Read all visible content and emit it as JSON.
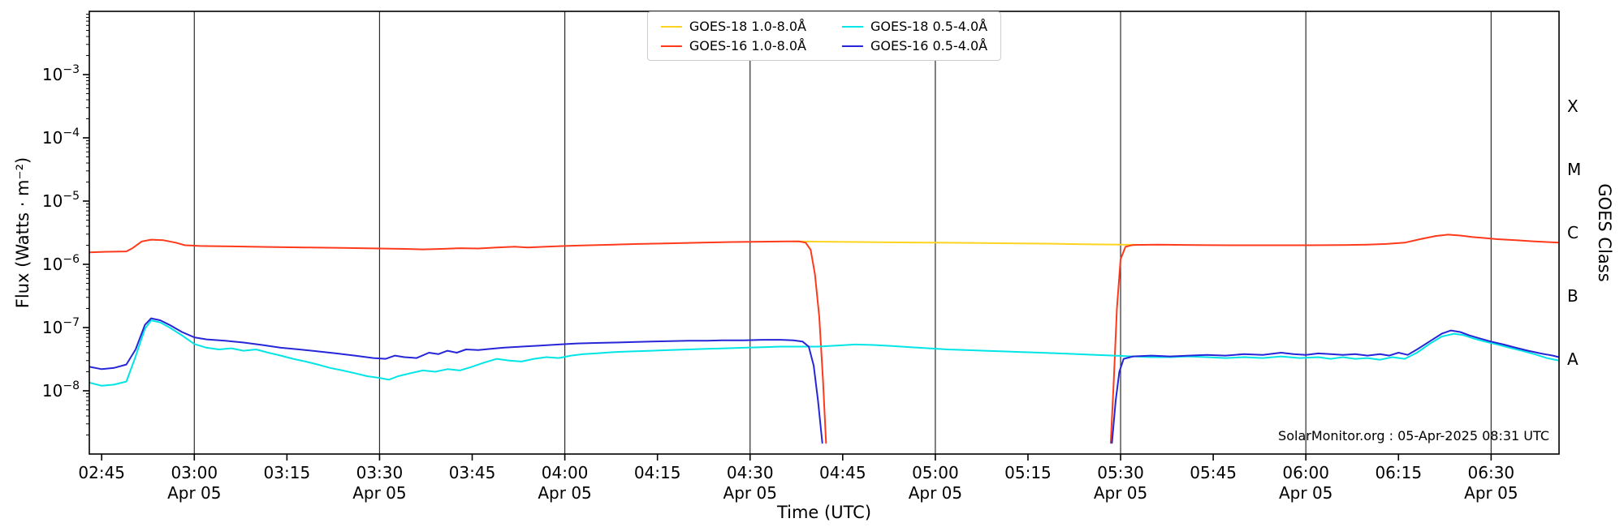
{
  "chart_data": {
    "type": "line",
    "title": "",
    "xlabel": "Time (UTC)",
    "ylabel": "Flux (Watts · m⁻²)",
    "ylabel_right": "GOES Class",
    "annotation": "SolarMonitor.org : 05-Apr-2025 08:31 UTC",
    "x_unit": "minutes_after_midnight_utc",
    "xlim": [
      163,
      401
    ],
    "ylim_log10": [
      -9,
      -2
    ],
    "grid": "vertical_at_30min",
    "legend_position": "top-center",
    "x_major_ticks": [
      {
        "t": 165,
        "label": "02:45"
      },
      {
        "t": 180,
        "label": "03:00",
        "date": "Apr 05",
        "gridline": true
      },
      {
        "t": 195,
        "label": "03:15"
      },
      {
        "t": 210,
        "label": "03:30",
        "date": "Apr 05",
        "gridline": true
      },
      {
        "t": 225,
        "label": "03:45"
      },
      {
        "t": 240,
        "label": "04:00",
        "date": "Apr 05",
        "gridline": true
      },
      {
        "t": 255,
        "label": "04:15"
      },
      {
        "t": 270,
        "label": "04:30",
        "date": "Apr 05",
        "gridline": true
      },
      {
        "t": 285,
        "label": "04:45"
      },
      {
        "t": 300,
        "label": "05:00",
        "date": "Apr 05",
        "gridline": true
      },
      {
        "t": 315,
        "label": "05:15"
      },
      {
        "t": 330,
        "label": "05:30",
        "date": "Apr 05",
        "gridline": true
      },
      {
        "t": 345,
        "label": "05:45"
      },
      {
        "t": 360,
        "label": "06:00",
        "date": "Apr 05",
        "gridline": true
      },
      {
        "t": 375,
        "label": "06:15"
      },
      {
        "t": 390,
        "label": "06:30",
        "date": "Apr 05",
        "gridline": true
      }
    ],
    "y_ticks": [
      {
        "exp": -3,
        "label": "10⁻³"
      },
      {
        "exp": -4,
        "label": "10⁻⁴"
      },
      {
        "exp": -5,
        "label": "10⁻⁵"
      },
      {
        "exp": -6,
        "label": "10⁻⁶"
      },
      {
        "exp": -7,
        "label": "10⁻⁷"
      },
      {
        "exp": -8,
        "label": "10⁻⁸"
      }
    ],
    "goes_class_labels": [
      {
        "label": "X",
        "log10": -3.5
      },
      {
        "label": "M",
        "log10": -4.5
      },
      {
        "label": "C",
        "log10": -5.5
      },
      {
        "label": "B",
        "log10": -6.5
      },
      {
        "label": "A",
        "log10": -7.5
      }
    ],
    "series": [
      {
        "name": "GOES-18 1.0-8.0Å",
        "color": "#ffd321",
        "points": [
          [
            277,
            2.3e-06
          ],
          [
            282,
            2.28e-06
          ],
          [
            288,
            2.25e-06
          ],
          [
            294,
            2.22e-06
          ],
          [
            300,
            2.2e-06
          ],
          [
            306,
            2.18e-06
          ],
          [
            312,
            2.15e-06
          ],
          [
            318,
            2.12e-06
          ],
          [
            324,
            2.08e-06
          ],
          [
            330,
            2.05e-06
          ],
          [
            333,
            2.03e-06
          ]
        ]
      },
      {
        "name": "GOES-16 1.0-8.0Å",
        "color": "#ff3a1c",
        "points": [
          [
            163,
            1.55e-06
          ],
          [
            166,
            1.58e-06
          ],
          [
            169,
            1.6e-06
          ],
          [
            170,
            1.8e-06
          ],
          [
            171.5,
            2.3e-06
          ],
          [
            173,
            2.45e-06
          ],
          [
            175,
            2.4e-06
          ],
          [
            177,
            2.2e-06
          ],
          [
            178.5,
            2e-06
          ],
          [
            181,
            1.95e-06
          ],
          [
            186,
            1.92e-06
          ],
          [
            192,
            1.88e-06
          ],
          [
            198,
            1.85e-06
          ],
          [
            204,
            1.82e-06
          ],
          [
            210,
            1.78e-06
          ],
          [
            214,
            1.75e-06
          ],
          [
            217,
            1.72e-06
          ],
          [
            220,
            1.75e-06
          ],
          [
            223,
            1.8e-06
          ],
          [
            226,
            1.78e-06
          ],
          [
            229,
            1.85e-06
          ],
          [
            232,
            1.9e-06
          ],
          [
            234,
            1.85e-06
          ],
          [
            237,
            1.9e-06
          ],
          [
            240,
            1.95e-06
          ],
          [
            244,
            2e-06
          ],
          [
            248,
            2.05e-06
          ],
          [
            252,
            2.1e-06
          ],
          [
            257,
            2.15e-06
          ],
          [
            262,
            2.2e-06
          ],
          [
            267,
            2.25e-06
          ],
          [
            272,
            2.28e-06
          ],
          [
            276,
            2.3e-06
          ],
          [
            278,
            2.3e-06
          ],
          [
            279,
            2.2e-06
          ],
          [
            279.8,
            1.7e-06
          ],
          [
            280.5,
            7e-07
          ],
          [
            281.2,
            1.5e-07
          ],
          [
            281.8,
            1.5e-08
          ],
          [
            282.3,
            1.5e-09
          ],
          null,
          [
            328.4,
            1.5e-09
          ],
          [
            328.9,
            1.5e-08
          ],
          [
            329.4,
            2e-07
          ],
          [
            330,
            1.2e-06
          ],
          [
            330.8,
            1.9e-06
          ],
          [
            332,
            2.02e-06
          ],
          [
            336,
            2.05e-06
          ],
          [
            342,
            2.02e-06
          ],
          [
            348,
            2e-06
          ],
          [
            354,
            2e-06
          ],
          [
            360,
            2e-06
          ],
          [
            366,
            2.02e-06
          ],
          [
            370,
            2.05e-06
          ],
          [
            373,
            2.1e-06
          ],
          [
            376,
            2.2e-06
          ],
          [
            378.5,
            2.5e-06
          ],
          [
            381,
            2.8e-06
          ],
          [
            383,
            2.95e-06
          ],
          [
            385,
            2.85e-06
          ],
          [
            387,
            2.7e-06
          ],
          [
            389,
            2.6e-06
          ],
          [
            391,
            2.5e-06
          ],
          [
            394,
            2.4e-06
          ],
          [
            397,
            2.3e-06
          ],
          [
            399,
            2.25e-06
          ],
          [
            401,
            2.2e-06
          ]
        ]
      },
      {
        "name": "GOES-18 0.5-4.0Å",
        "color": "#00e5e5",
        "points": [
          [
            163,
            1.35e-08
          ],
          [
            165,
            1.2e-08
          ],
          [
            167,
            1.25e-08
          ],
          [
            169,
            1.4e-08
          ],
          [
            170.5,
            3.5e-08
          ],
          [
            172,
            9.5e-08
          ],
          [
            173,
            1.3e-07
          ],
          [
            174.5,
            1.2e-07
          ],
          [
            176,
            1e-07
          ],
          [
            178,
            7.5e-08
          ],
          [
            180,
            5.5e-08
          ],
          [
            182,
            4.8e-08
          ],
          [
            184,
            4.5e-08
          ],
          [
            186,
            4.7e-08
          ],
          [
            188,
            4.3e-08
          ],
          [
            190,
            4.5e-08
          ],
          [
            192,
            4e-08
          ],
          [
            194,
            3.6e-08
          ],
          [
            196,
            3.2e-08
          ],
          [
            198,
            2.9e-08
          ],
          [
            200,
            2.6e-08
          ],
          [
            202,
            2.3e-08
          ],
          [
            204,
            2.1e-08
          ],
          [
            206,
            1.9e-08
          ],
          [
            208,
            1.7e-08
          ],
          [
            210,
            1.6e-08
          ],
          [
            211.5,
            1.5e-08
          ],
          [
            213,
            1.7e-08
          ],
          [
            215,
            1.9e-08
          ],
          [
            217,
            2.1e-08
          ],
          [
            219,
            2e-08
          ],
          [
            221,
            2.2e-08
          ],
          [
            223,
            2.1e-08
          ],
          [
            225,
            2.4e-08
          ],
          [
            227,
            2.8e-08
          ],
          [
            229,
            3.2e-08
          ],
          [
            231,
            3e-08
          ],
          [
            233,
            2.9e-08
          ],
          [
            235,
            3.2e-08
          ],
          [
            237,
            3.4e-08
          ],
          [
            239,
            3.3e-08
          ],
          [
            241,
            3.6e-08
          ],
          [
            243,
            3.8e-08
          ],
          [
            245,
            3.9e-08
          ],
          [
            248,
            4.1e-08
          ],
          [
            251,
            4.2e-08
          ],
          [
            254,
            4.3e-08
          ],
          [
            257,
            4.4e-08
          ],
          [
            260,
            4.5e-08
          ],
          [
            263,
            4.6e-08
          ],
          [
            266,
            4.7e-08
          ],
          [
            269,
            4.8e-08
          ],
          [
            272,
            4.9e-08
          ],
          [
            275,
            5e-08
          ],
          [
            278,
            5e-08
          ],
          [
            281,
            5e-08
          ],
          [
            284,
            5.2e-08
          ],
          [
            287,
            5.4e-08
          ],
          [
            290,
            5.3e-08
          ],
          [
            293,
            5.1e-08
          ],
          [
            296,
            4.9e-08
          ],
          [
            299,
            4.7e-08
          ],
          [
            302,
            4.5e-08
          ],
          [
            305,
            4.4e-08
          ],
          [
            308,
            4.3e-08
          ],
          [
            311,
            4.2e-08
          ],
          [
            314,
            4.1e-08
          ],
          [
            317,
            4e-08
          ],
          [
            320,
            3.9e-08
          ],
          [
            323,
            3.8e-08
          ],
          [
            326,
            3.7e-08
          ],
          [
            329,
            3.6e-08
          ],
          [
            332,
            3.5e-08
          ],
          [
            335,
            3.4e-08
          ],
          [
            338,
            3.4e-08
          ],
          [
            341,
            3.5e-08
          ],
          [
            344,
            3.4e-08
          ],
          [
            347,
            3.3e-08
          ],
          [
            350,
            3.4e-08
          ],
          [
            353,
            3.3e-08
          ],
          [
            356,
            3.5e-08
          ],
          [
            359,
            3.3e-08
          ],
          [
            362,
            3.4e-08
          ],
          [
            364,
            3.2e-08
          ],
          [
            366,
            3.4e-08
          ],
          [
            368,
            3.2e-08
          ],
          [
            370,
            3.3e-08
          ],
          [
            372,
            3.1e-08
          ],
          [
            374,
            3.4e-08
          ],
          [
            376,
            3.2e-08
          ],
          [
            378,
            4e-08
          ],
          [
            380,
            5.5e-08
          ],
          [
            382,
            7.2e-08
          ],
          [
            384,
            8e-08
          ],
          [
            385.5,
            7.6e-08
          ],
          [
            387,
            6.8e-08
          ],
          [
            389,
            6e-08
          ],
          [
            391,
            5.4e-08
          ],
          [
            393,
            4.8e-08
          ],
          [
            395,
            4.3e-08
          ],
          [
            397,
            3.8e-08
          ],
          [
            399,
            3.3e-08
          ],
          [
            401,
            3e-08
          ]
        ]
      },
      {
        "name": "GOES-16 0.5-4.0Å",
        "color": "#2626d8",
        "points": [
          [
            163,
            2.4e-08
          ],
          [
            165,
            2.2e-08
          ],
          [
            167,
            2.3e-08
          ],
          [
            169,
            2.6e-08
          ],
          [
            170.5,
            4.5e-08
          ],
          [
            172,
            1.1e-07
          ],
          [
            173,
            1.4e-07
          ],
          [
            174.5,
            1.3e-07
          ],
          [
            176,
            1.1e-07
          ],
          [
            178,
            8.5e-08
          ],
          [
            180,
            7e-08
          ],
          [
            182,
            6.5e-08
          ],
          [
            185,
            6.2e-08
          ],
          [
            188,
            5.8e-08
          ],
          [
            191,
            5.3e-08
          ],
          [
            194,
            4.8e-08
          ],
          [
            197,
            4.5e-08
          ],
          [
            200,
            4.2e-08
          ],
          [
            203,
            3.9e-08
          ],
          [
            206,
            3.6e-08
          ],
          [
            209,
            3.3e-08
          ],
          [
            211,
            3.2e-08
          ],
          [
            212.5,
            3.6e-08
          ],
          [
            214,
            3.4e-08
          ],
          [
            216,
            3.3e-08
          ],
          [
            218,
            4e-08
          ],
          [
            219.5,
            3.8e-08
          ],
          [
            221,
            4.3e-08
          ],
          [
            222.5,
            4e-08
          ],
          [
            224,
            4.5e-08
          ],
          [
            226,
            4.4e-08
          ],
          [
            228,
            4.6e-08
          ],
          [
            230,
            4.8e-08
          ],
          [
            233,
            5e-08
          ],
          [
            236,
            5.2e-08
          ],
          [
            239,
            5.4e-08
          ],
          [
            242,
            5.6e-08
          ],
          [
            245,
            5.7e-08
          ],
          [
            248,
            5.8e-08
          ],
          [
            251,
            5.9e-08
          ],
          [
            254,
            6e-08
          ],
          [
            257,
            6.1e-08
          ],
          [
            260,
            6.2e-08
          ],
          [
            263,
            6.2e-08
          ],
          [
            266,
            6.3e-08
          ],
          [
            269,
            6.3e-08
          ],
          [
            272,
            6.4e-08
          ],
          [
            275,
            6.4e-08
          ],
          [
            277,
            6.3e-08
          ],
          [
            278.5,
            6e-08
          ],
          [
            279.5,
            5e-08
          ],
          [
            280.3,
            2.5e-08
          ],
          [
            281,
            7e-09
          ],
          [
            281.7,
            1.5e-09
          ],
          null,
          [
            328.6,
            1.5e-09
          ],
          [
            329.2,
            7e-09
          ],
          [
            329.8,
            2e-08
          ],
          [
            330.5,
            3.2e-08
          ],
          [
            332,
            3.5e-08
          ],
          [
            335,
            3.6e-08
          ],
          [
            338,
            3.5e-08
          ],
          [
            341,
            3.6e-08
          ],
          [
            344,
            3.7e-08
          ],
          [
            347,
            3.6e-08
          ],
          [
            350,
            3.8e-08
          ],
          [
            353,
            3.7e-08
          ],
          [
            356,
            4e-08
          ],
          [
            358,
            3.8e-08
          ],
          [
            360,
            3.7e-08
          ],
          [
            362,
            3.9e-08
          ],
          [
            364,
            3.8e-08
          ],
          [
            366,
            3.7e-08
          ],
          [
            368,
            3.8e-08
          ],
          [
            370,
            3.6e-08
          ],
          [
            372,
            3.8e-08
          ],
          [
            373.5,
            3.6e-08
          ],
          [
            375,
            4e-08
          ],
          [
            376.5,
            3.7e-08
          ],
          [
            378,
            4.5e-08
          ],
          [
            380,
            6e-08
          ],
          [
            382,
            8e-08
          ],
          [
            383.5,
            9e-08
          ],
          [
            385,
            8.5e-08
          ],
          [
            386.5,
            7.5e-08
          ],
          [
            388,
            6.8e-08
          ],
          [
            390,
            6e-08
          ],
          [
            392,
            5.4e-08
          ],
          [
            394,
            4.8e-08
          ],
          [
            396,
            4.3e-08
          ],
          [
            398,
            3.9e-08
          ],
          [
            400,
            3.6e-08
          ],
          [
            401,
            3.4e-08
          ]
        ]
      }
    ]
  }
}
